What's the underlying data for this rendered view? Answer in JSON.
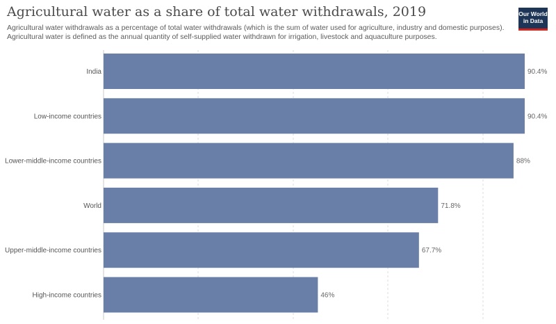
{
  "header": {
    "title": "Agricultural water as a share of total water withdrawals, 2019",
    "subtitle": "Agricultural water withdrawals as a percentage of total water withdrawals (which is the sum of water used for agriculture, industry and domestic purposes). Agricultural water is defined as the annual quantity of self-supplied water withdrawn for irrigation, livestock and aquaculture purposes."
  },
  "logo": {
    "line1": "Our World",
    "line2": "in Data",
    "bg_color": "#1d3557",
    "accent_color": "#ce261e"
  },
  "colors": {
    "bar": "#6a7fa8",
    "grid": "#dddddd"
  },
  "chart_data": {
    "type": "bar",
    "orientation": "horizontal",
    "title": "Agricultural water as a share of total water withdrawals, 2019",
    "categories": [
      "India",
      "Low-income countries",
      "Lower-middle-income countries",
      "World",
      "Upper-middle-income countries",
      "High-income countries"
    ],
    "values": [
      90.4,
      90.4,
      88,
      71.8,
      67.7,
      46
    ],
    "value_labels": [
      "90.4%",
      "90.4%",
      "88%",
      "71.8%",
      "67.7%",
      "46%"
    ],
    "unit": "%",
    "xlim": [
      0,
      90.4
    ],
    "grid": true,
    "xlabel": "",
    "ylabel": ""
  }
}
